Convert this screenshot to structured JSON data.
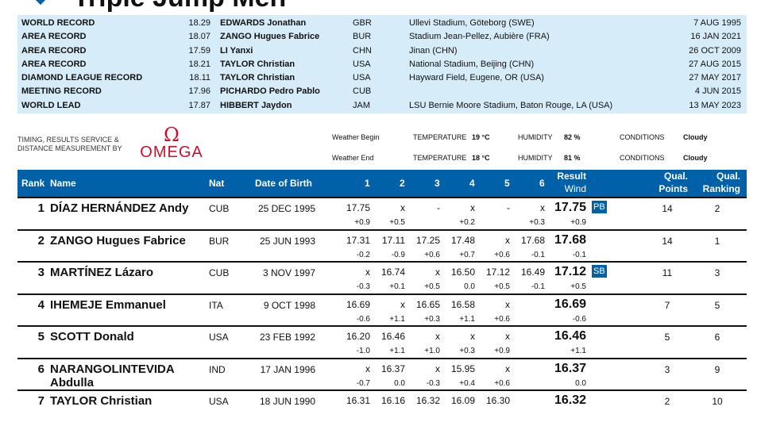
{
  "title": "Triple Jump Men",
  "records": [
    {
      "label": "WORLD RECORD",
      "mark": "18.29",
      "name": "EDWARDS Jonathan",
      "nat": "GBR",
      "venue": "Ullevi Stadium, Göteborg (SWE)",
      "date": "7 AUG 1995"
    },
    {
      "label": "AREA RECORD",
      "mark": "18.07",
      "name": "ZANGO Hugues Fabrice",
      "nat": "BUR",
      "venue": "Stadium Jean-Pellez, Aubière (FRA)",
      "date": "16 JAN 2021"
    },
    {
      "label": "AREA RECORD",
      "mark": "17.59",
      "name": "LI Yanxi",
      "nat": "CHN",
      "venue": "Jinan (CHN)",
      "date": "26 OCT 2009"
    },
    {
      "label": "AREA RECORD",
      "mark": "18.21",
      "name": "TAYLOR Christian",
      "nat": "USA",
      "venue": "National Stadium, Beijing (CHN)",
      "date": "27 AUG 2015"
    },
    {
      "label": "DIAMOND LEAGUE RECORD",
      "mark": "18.11",
      "name": "TAYLOR Christian",
      "nat": "USA",
      "venue": "Hayward Field, Eugene, OR (USA)",
      "date": "27 MAY 2017"
    },
    {
      "label": "MEETING RECORD",
      "mark": "17.96",
      "name": "PICHARDO Pedro Pablo",
      "nat": "CUB",
      "venue": "",
      "date": "4 JUN 2015"
    },
    {
      "label": "WORLD LEAD",
      "mark": "17.87",
      "name": "HIBBERT Jaydon",
      "nat": "JAM",
      "venue": "LSU Bernie Moore Stadium, Baton Rouge, LA (USA)",
      "date": "13 MAY 2023"
    }
  ],
  "sponsor": {
    "line1": "TIMING, RESULTS SERVICE &",
    "line2": "DISTANCE MEASUREMENT BY",
    "logo": "OMEGA",
    "symbol": "Ω"
  },
  "weather": [
    {
      "label": "Weather Begin",
      "temp_label": "TEMPERATURE",
      "temp": "19 °C",
      "hum_label": "HUMIDITY",
      "hum": "82 %",
      "cond_label": "CONDITIONS",
      "cond": "Cloudy"
    },
    {
      "label": "Weather End",
      "temp_label": "TEMPERATURE",
      "temp": "18 °C",
      "hum_label": "HUMIDITY",
      "hum": "81 %",
      "cond_label": "CONDITIONS",
      "cond": "Cloudy"
    }
  ],
  "headers": {
    "rank": "Rank",
    "name": "Name",
    "nat": "Nat",
    "dob": "Date of Birth",
    "a1": "1",
    "a2": "2",
    "a3": "3",
    "a4": "4",
    "a5": "5",
    "a6": "6",
    "result": "Result",
    "wind": "Wind",
    "qp1": "Qual.",
    "qp2": "Points",
    "qr1": "Qual.",
    "qr2": "Ranking"
  },
  "athletes": [
    {
      "rank": "1",
      "name": "DÍAZ HERNÁNDEZ Andy",
      "nat": "CUB",
      "dob": "25 DEC 1995",
      "att": [
        "17.75",
        "x",
        "-",
        "x",
        "-",
        "x"
      ],
      "wind": [
        "+0.9",
        "+0.5",
        "",
        "+0.2",
        "",
        "+0.3"
      ],
      "result": "17.75",
      "rwind": "+0.9",
      "badge": "PB",
      "qp": "14",
      "qr": "2"
    },
    {
      "rank": "2",
      "name": "ZANGO Hugues Fabrice",
      "nat": "BUR",
      "dob": "25 JUN 1993",
      "att": [
        "17.31",
        "17.11",
        "17.25",
        "17.48",
        "x",
        "17.68"
      ],
      "wind": [
        "-0.2",
        "-0.9",
        "+0.6",
        "+0.7",
        "+0.6",
        "-0.1"
      ],
      "result": "17.68",
      "rwind": "-0.1",
      "badge": "",
      "qp": "14",
      "qr": "1"
    },
    {
      "rank": "3",
      "name": "MARTÍNEZ Lázaro",
      "nat": "CUB",
      "dob": "3 NOV 1997",
      "att": [
        "x",
        "16.74",
        "x",
        "16.50",
        "17.12",
        "16.49"
      ],
      "wind": [
        "-0.3",
        "+0.1",
        "+0.5",
        "0.0",
        "+0.5",
        "-0.1"
      ],
      "result": "17.12",
      "rwind": "+0.5",
      "badge": "SB",
      "qp": "11",
      "qr": "3"
    },
    {
      "rank": "4",
      "name": "IHEMEJE Emmanuel",
      "nat": "ITA",
      "dob": "9 OCT 1998",
      "att": [
        "16.69",
        "x",
        "16.65",
        "16.58",
        "x",
        ""
      ],
      "wind": [
        "-0.6",
        "+1.1",
        "+0.3",
        "+1.1",
        "+0.6",
        ""
      ],
      "result": "16.69",
      "rwind": "-0.6",
      "badge": "",
      "qp": "7",
      "qr": "5"
    },
    {
      "rank": "5",
      "name": "SCOTT Donald",
      "nat": "USA",
      "dob": "23 FEB 1992",
      "att": [
        "16.20",
        "16.46",
        "x",
        "x",
        "x",
        ""
      ],
      "wind": [
        "-1.0",
        "+1.1",
        "+1.0",
        "+0.3",
        "+0.9",
        ""
      ],
      "result": "16.46",
      "rwind": "+1.1",
      "badge": "",
      "qp": "5",
      "qr": "6"
    },
    {
      "rank": "6",
      "name": "NARANGOLINTEVIDA Abdulla",
      "nat": "IND",
      "dob": "17 JAN 1996",
      "att": [
        "x",
        "16.37",
        "x",
        "15.95",
        "x",
        ""
      ],
      "wind": [
        "-0.7",
        "0.0",
        "-0.3",
        "+0.4",
        "+0.6",
        ""
      ],
      "result": "16.37",
      "rwind": "0.0",
      "badge": "",
      "qp": "3",
      "qr": "9"
    },
    {
      "rank": "7",
      "name": "TAYLOR Christian",
      "nat": "USA",
      "dob": "18 JUN 1990",
      "att": [
        "16.31",
        "16.16",
        "16.32",
        "16.09",
        "16.30",
        ""
      ],
      "wind": [
        "",
        "",
        "",
        "",
        "",
        ""
      ],
      "result": "16.32",
      "rwind": "",
      "badge": "",
      "qp": "2",
      "qr": "10"
    }
  ]
}
